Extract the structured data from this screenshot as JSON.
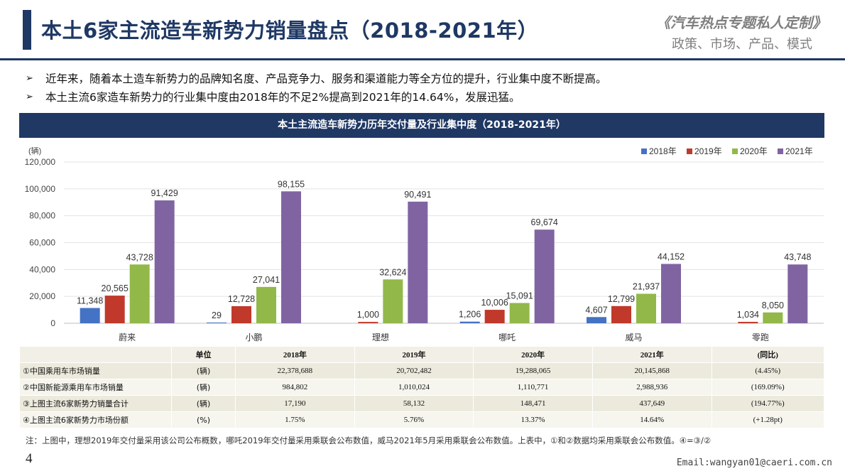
{
  "header": {
    "title": "本土6家主流造车新势力销量盘点（2018-2021年）",
    "brand": "《汽车热点专题私人定制》",
    "brand_sub": "政策、市场、产品、模式"
  },
  "bullets": [
    "近年来，随着本土造车新势力的品牌知名度、产品竞争力、服务和渠道能力等全方位的提升，行业集中度不断提高。",
    "本土主流6家造车新势力的行业集中度由2018年的不足2%提高到2021年的14.64%，发展迅猛。"
  ],
  "banner": "本土主流造车新势力历年交付量及行业集中度（2018-2021年）",
  "chart_data": {
    "type": "bar",
    "ylabel": "(辆)",
    "ylim": [
      0,
      120000
    ],
    "yticks": [
      "0",
      "20,000",
      "40,000",
      "60,000",
      "80,000",
      "100,000",
      "120,000"
    ],
    "categories": [
      "蔚来",
      "小鹏",
      "理想",
      "哪吒",
      "威马",
      "零跑"
    ],
    "legend_position": "top-right",
    "grid": true,
    "series": [
      {
        "name": "2018年",
        "color": "#4472c4",
        "values": [
          11348,
          29,
          0,
          1206,
          4607,
          0
        ],
        "labels": [
          "11,348",
          "29",
          "",
          "1,206",
          "4,607",
          ""
        ]
      },
      {
        "name": "2019年",
        "color": "#c0392b",
        "values": [
          20565,
          12728,
          1000,
          10006,
          12799,
          1034
        ],
        "labels": [
          "20,565",
          "12,728",
          "1,000",
          "10,006",
          "12,799",
          "1,034"
        ]
      },
      {
        "name": "2020年",
        "color": "#92b849",
        "values": [
          43728,
          27041,
          32624,
          15091,
          21937,
          8050
        ],
        "labels": [
          "43,728",
          "27,041",
          "32,624",
          "15,091",
          "21,937",
          "8,050"
        ]
      },
      {
        "name": "2021年",
        "color": "#8064a2",
        "values": [
          91429,
          98155,
          90491,
          69674,
          44152,
          43748
        ],
        "labels": [
          "91,429",
          "98,155",
          "90,491",
          "69,674",
          "44,152",
          "43,748"
        ]
      }
    ]
  },
  "table": {
    "headers": [
      "",
      "单位",
      "2018年",
      "2019年",
      "2020年",
      "2021年",
      "(同比)"
    ],
    "rows": [
      [
        "①中国乘用车市场销量",
        "(辆)",
        "22,378,688",
        "20,702,482",
        "19,288,065",
        "20,145,868",
        "(4.45%)"
      ],
      [
        "②中国新能源乘用车市场销量",
        "(辆)",
        "984,802",
        "1,010,024",
        "1,110,771",
        "2,988,936",
        "(169.09%)"
      ],
      [
        "③上图主流6家新势力销量合计",
        "(辆)",
        "17,190",
        "58,132",
        "148,471",
        "437,649",
        "(194.77%)"
      ],
      [
        "④上图主流6家新势力市场份额",
        "(%)",
        "1.75%",
        "5.76%",
        "13.37%",
        "14.64%",
        "(+1.28pt)"
      ]
    ]
  },
  "note": "注：上图中，理想2019年交付量采用该公司公布概数，哪吒2019年交付量采用乘联会公布数值，威马2021年5月采用乘联会公布数值。上表中，①和②数据均采用乘联会公布数值。④=③/②",
  "page_number": "4",
  "email": "Email:wangyan01@caeri.com.cn"
}
